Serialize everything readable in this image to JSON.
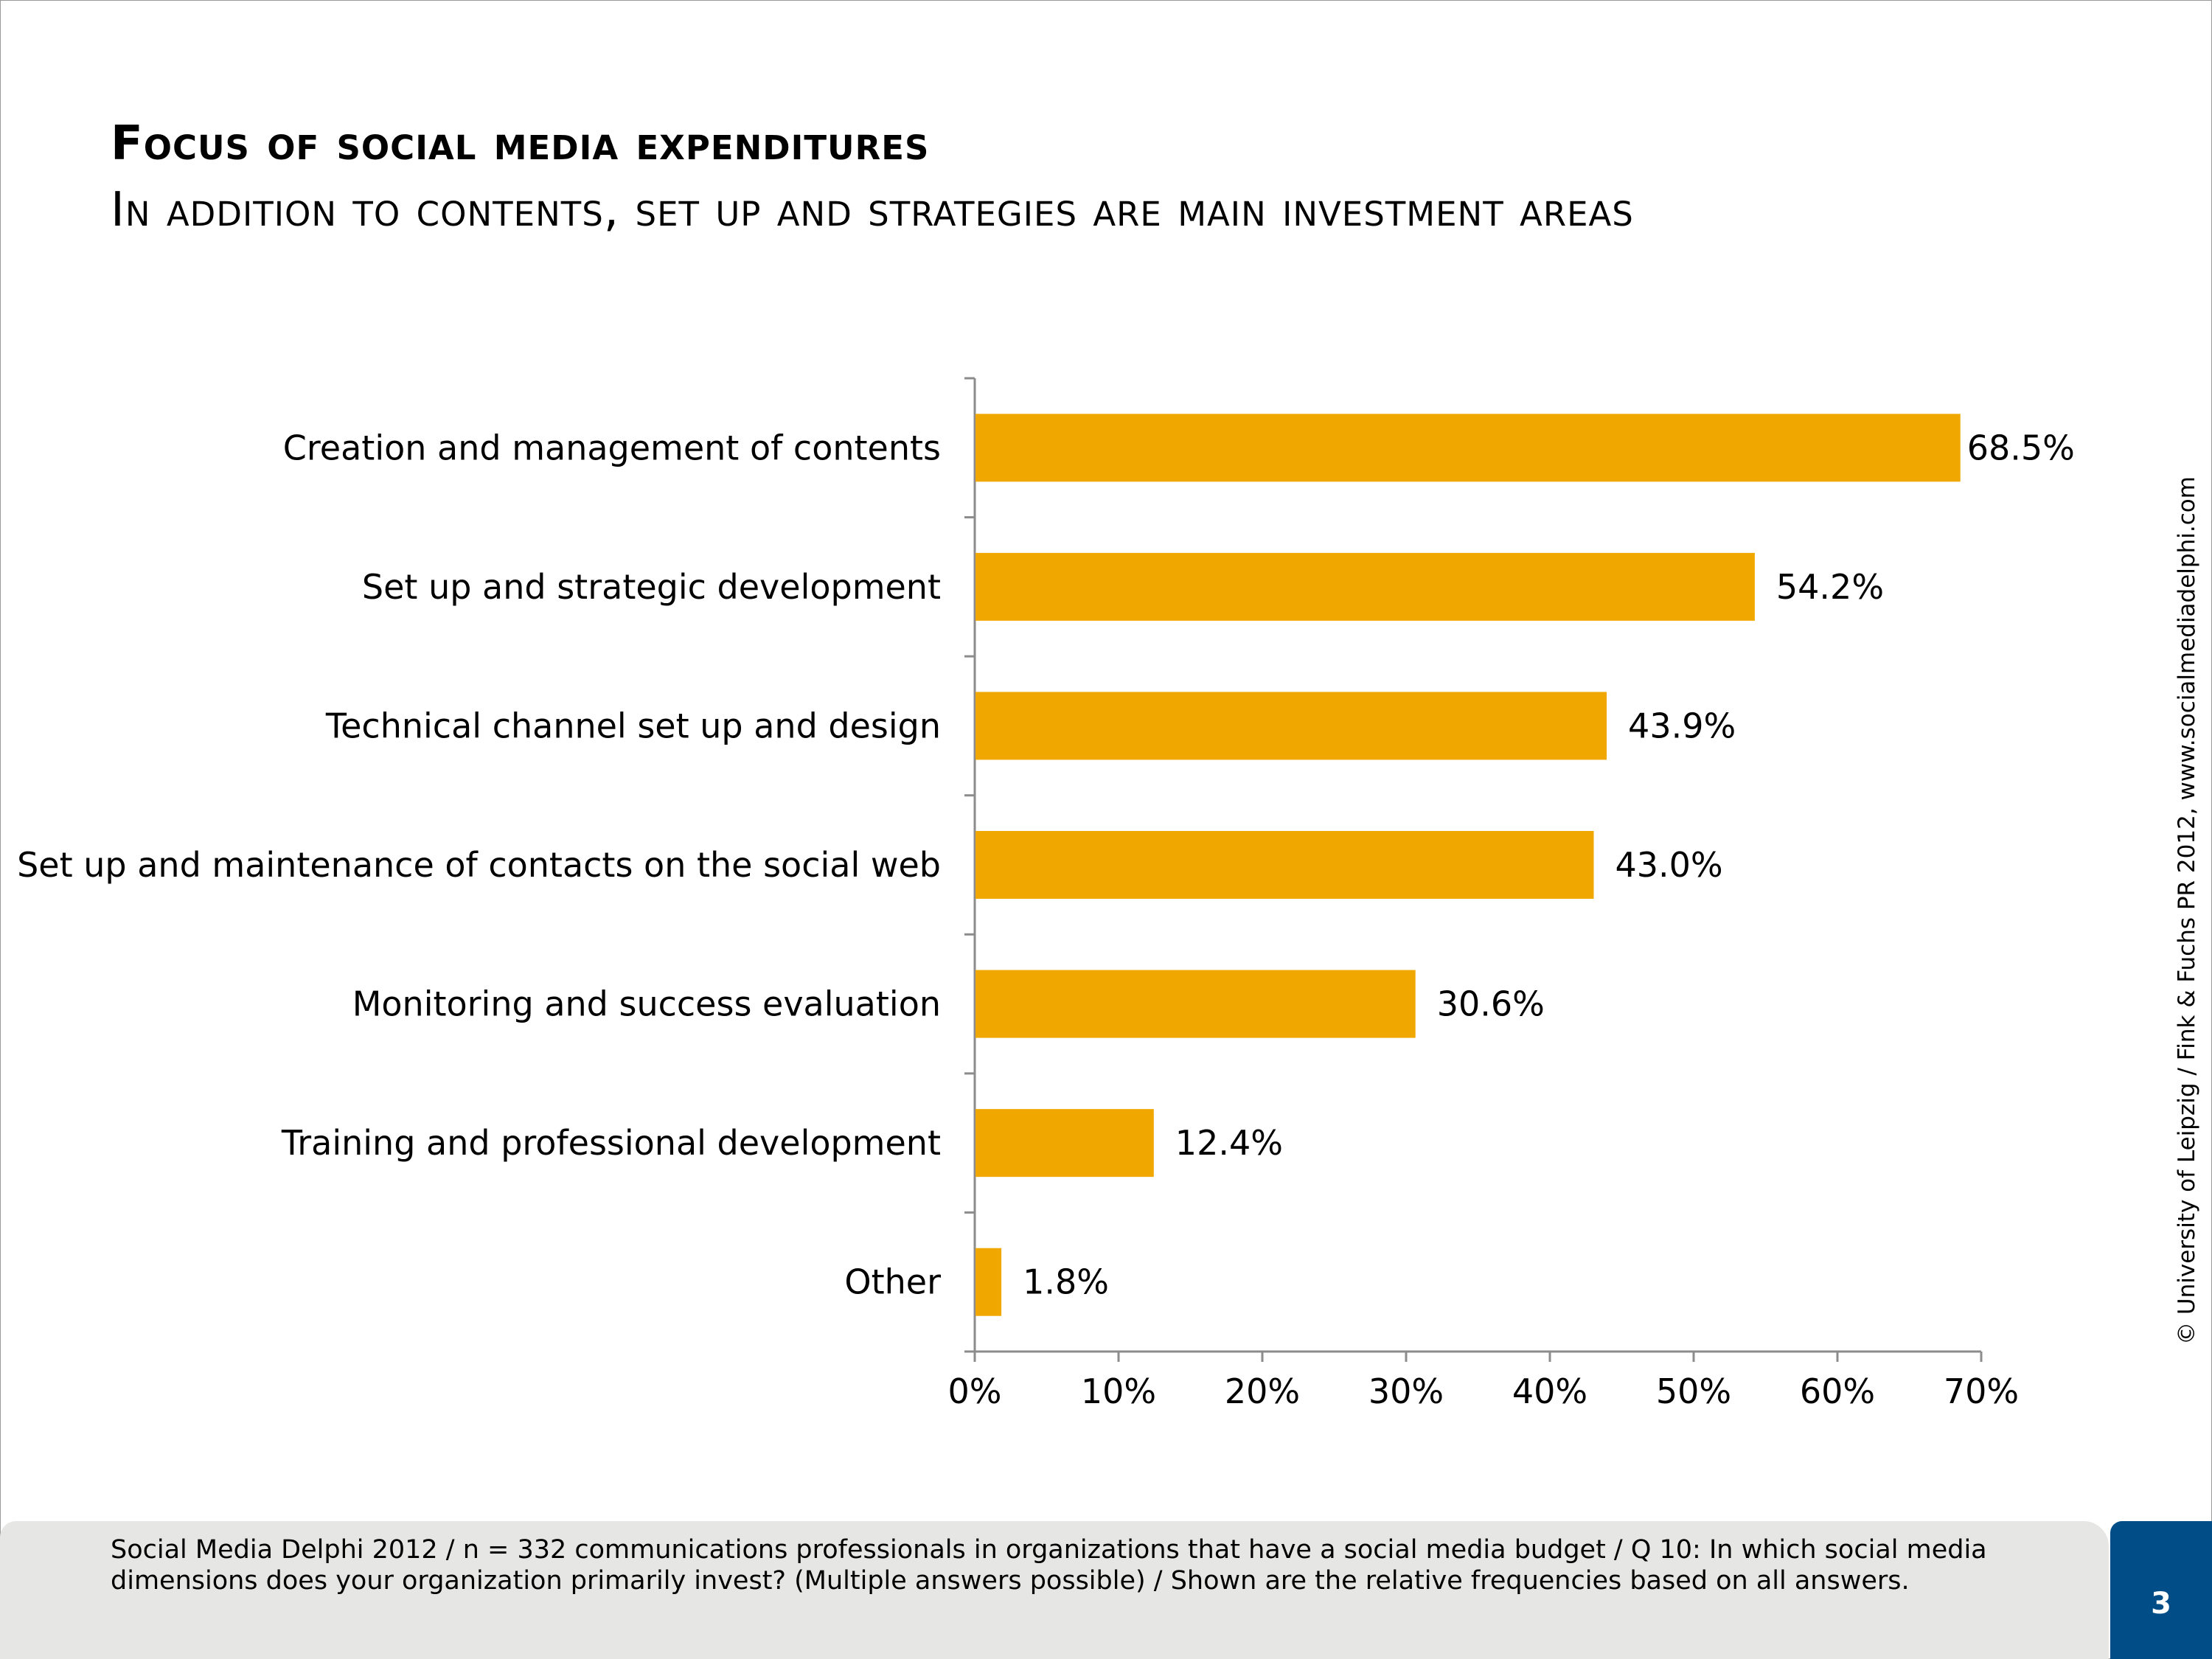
{
  "header": {
    "title": "Focus of social media expenditures",
    "subtitle": "In addition to contents, set up and strategies are main investment areas"
  },
  "chart_data": {
    "type": "bar",
    "orientation": "horizontal",
    "categories": [
      "Creation and management of contents",
      "Set up and strategic development",
      "Technical channel set up and design",
      "Set up and maintenance of contacts on the social web",
      "Monitoring and success evaluation",
      "Training and professional development",
      "Other"
    ],
    "values": [
      68.5,
      54.2,
      43.9,
      43.0,
      30.6,
      12.4,
      1.8
    ],
    "value_labels": [
      "68.5%",
      "54.2%",
      "43.9%",
      "43.0%",
      "30.6%",
      "12.4%",
      "1.8%"
    ],
    "xlim": [
      0,
      70
    ],
    "x_ticks": [
      "0%",
      "10%",
      "20%",
      "30%",
      "40%",
      "50%",
      "60%",
      "70%"
    ],
    "bar_color": "#F0A800",
    "grid": false,
    "legend": "none"
  },
  "credit": "© University of Leipzig / Fink & Fuchs PR 2012, www.socialmediadelphi.com",
  "footer": {
    "note": "Social Media Delphi 2012 / n = 332 communications professionals in organizations that have a social media budget / Q 10: In which social media dimensions does your organization primarily invest? (Multiple answers possible) / Shown are the relative frequencies based on all answers.",
    "page_number": "3",
    "page_box_color": "#004d87"
  }
}
